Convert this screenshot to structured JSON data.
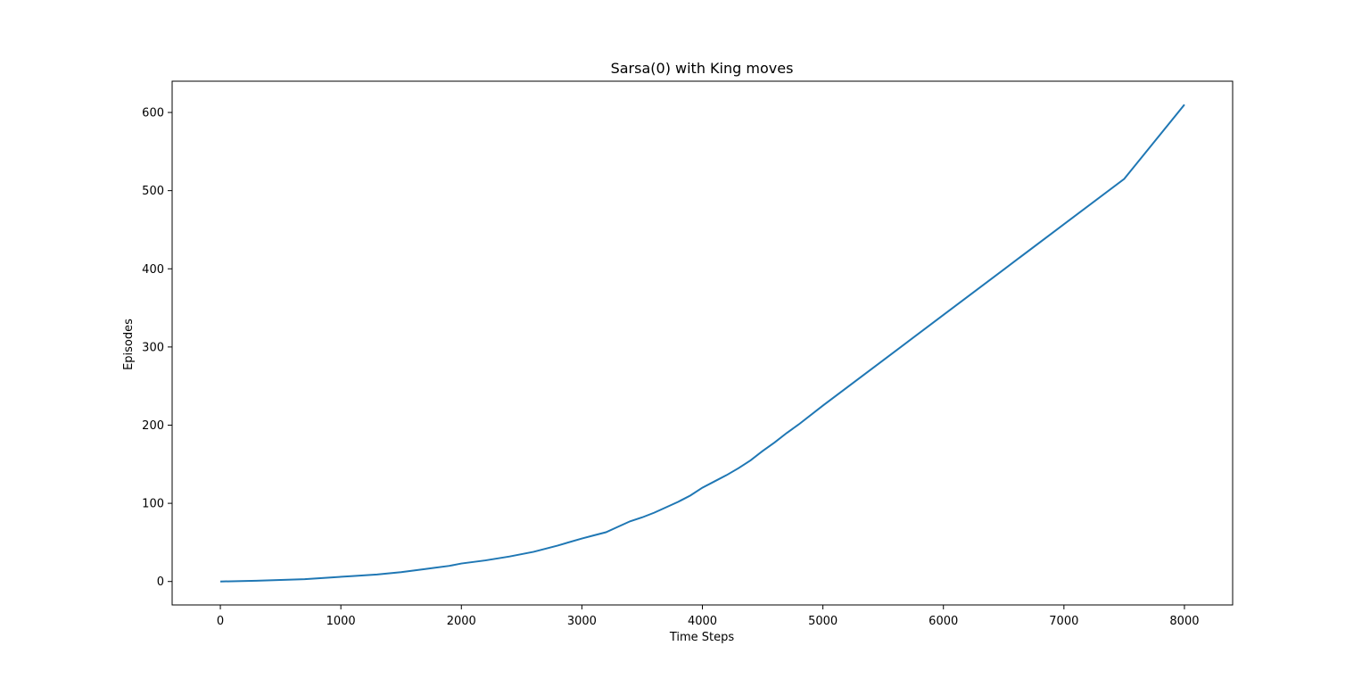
{
  "chart_data": {
    "type": "line",
    "title": "Sarsa(0) with King moves",
    "xlabel": "Time Steps",
    "ylabel": "Episodes",
    "xlim": [
      -400,
      8400
    ],
    "ylim": [
      -30,
      640
    ],
    "xticks": [
      0,
      1000,
      2000,
      3000,
      4000,
      5000,
      6000,
      7000,
      8000
    ],
    "xtick_labels": [
      "0",
      "1000",
      "2000",
      "3000",
      "4000",
      "5000",
      "6000",
      "7000",
      "8000"
    ],
    "yticks": [
      0,
      100,
      200,
      300,
      400,
      500,
      600
    ],
    "ytick_labels": [
      "0",
      "100",
      "200",
      "300",
      "400",
      "500",
      "600"
    ],
    "grid": false,
    "legend": "none",
    "series": [
      {
        "color": "#1f77b4",
        "x": [
          0,
          300,
          500,
          700,
          900,
          1100,
          1300,
          1500,
          1700,
          1900,
          2000,
          2200,
          2400,
          2600,
          2800,
          3000,
          3100,
          3200,
          3300,
          3400,
          3500,
          3600,
          3700,
          3800,
          3900,
          4000,
          4100,
          4200,
          4300,
          4400,
          4500,
          4600,
          4700,
          4800,
          5000,
          5500,
          6000,
          6500,
          7000,
          7500,
          8000
        ],
        "y": [
          0,
          1,
          2,
          3,
          5,
          7,
          9,
          12,
          16,
          20,
          23,
          27,
          32,
          38,
          46,
          55,
          59,
          63,
          70,
          77,
          82,
          88,
          95,
          102,
          110,
          120,
          128,
          136,
          145,
          155,
          167,
          178,
          190,
          201,
          225,
          283,
          341,
          399,
          457,
          515,
          610
        ]
      }
    ]
  }
}
